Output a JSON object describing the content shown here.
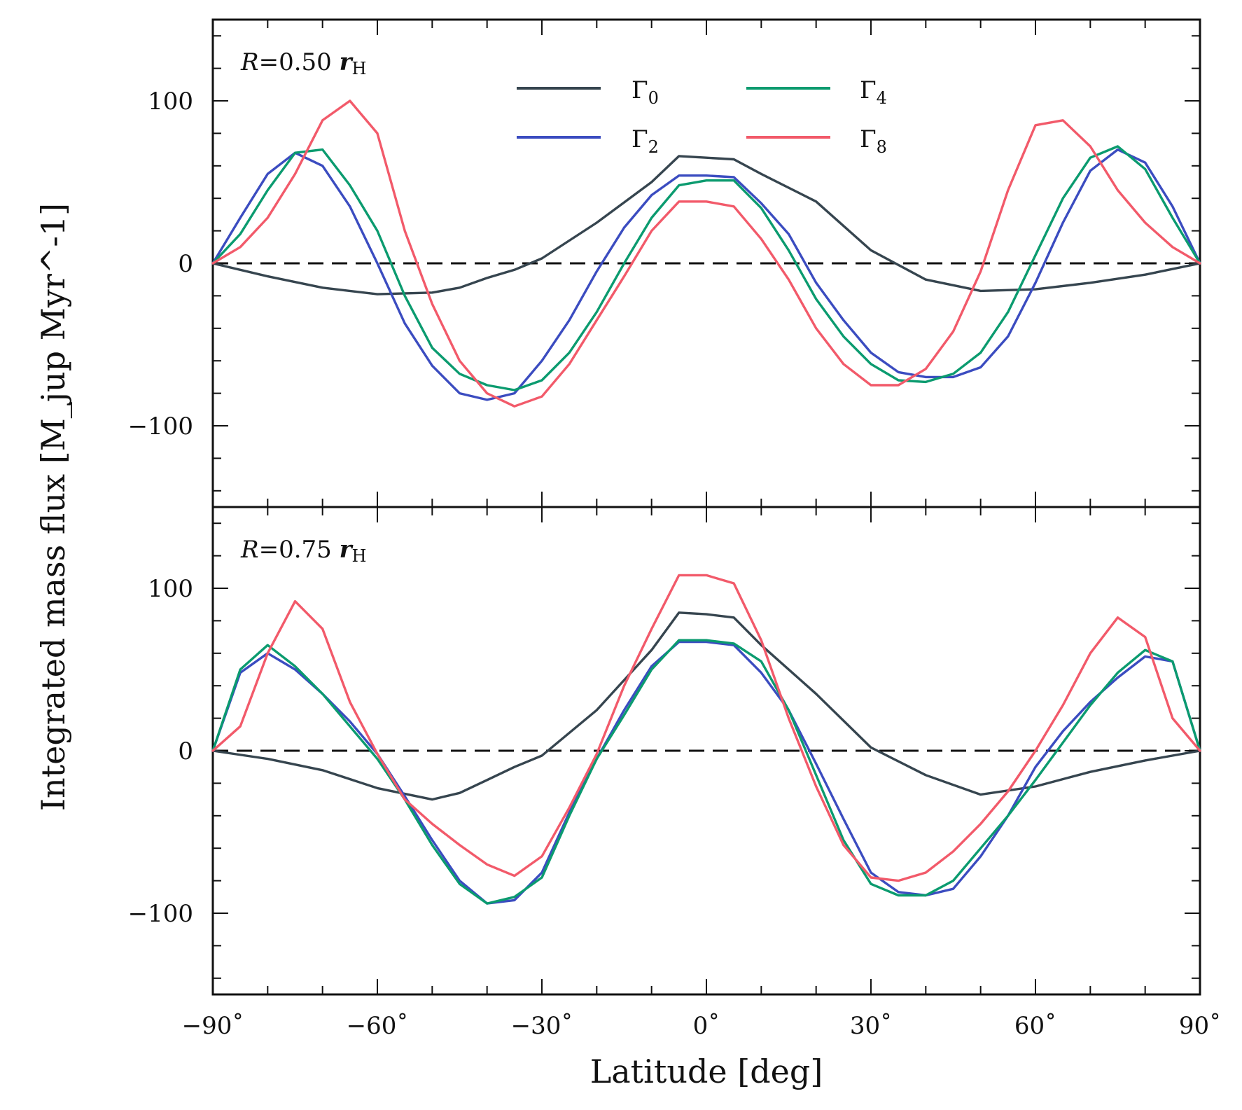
{
  "chart_data": {
    "type": "line",
    "xlabel": "Latitude [deg]",
    "ylabel_main": "Integrated mass flux",
    "ylabel_unit": "[M_jup Myr^-1]",
    "xlim": [
      -90,
      90
    ],
    "ylim": [
      -150,
      150
    ],
    "x_ticks": [
      -90,
      -60,
      -30,
      0,
      30,
      60,
      90
    ],
    "x_tick_labels": [
      "−90˚",
      "−60˚",
      "−30˚",
      "0˚",
      "30˚",
      "60˚",
      "90˚"
    ],
    "y_ticks": [
      -100,
      0,
      100
    ],
    "y_tick_labels": [
      "−100",
      "0",
      "100"
    ],
    "legend": {
      "placement": "top-center",
      "entries": [
        {
          "key": "g0",
          "base": "Γ",
          "sub": "0"
        },
        {
          "key": "g2",
          "base": "Γ",
          "sub": "2"
        },
        {
          "key": "g4",
          "base": "Γ",
          "sub": "4"
        },
        {
          "key": "g8",
          "base": "Γ",
          "sub": "8"
        }
      ]
    },
    "colors": {
      "g0": "#36454f",
      "g2": "#3b4cc0",
      "g4": "#0b9b6f",
      "g8": "#f25a6a"
    },
    "panels": [
      {
        "label": {
          "prefix": "R",
          "value": "=0.50 ",
          "unit": "r",
          "unit_sub": "H"
        },
        "series": [
          {
            "key": "g0",
            "x": [
              -90,
              -80,
              -70,
              -60,
              -50,
              -45,
              -40,
              -35,
              -30,
              -20,
              -10,
              -5,
              0,
              5,
              10,
              20,
              30,
              40,
              50,
              60,
              70,
              80,
              90
            ],
            "y": [
              0,
              -8,
              -15,
              -19,
              -18,
              -15,
              -9,
              -4,
              3,
              25,
              50,
              66,
              65,
              64,
              55,
              38,
              8,
              -10,
              -17,
              -16,
              -12,
              -7,
              0
            ]
          },
          {
            "key": "g2",
            "x": [
              -90,
              -85,
              -80,
              -75,
              -70,
              -65,
              -60,
              -55,
              -50,
              -45,
              -40,
              -35,
              -30,
              -25,
              -20,
              -15,
              -10,
              -5,
              0,
              5,
              10,
              15,
              20,
              25,
              30,
              35,
              40,
              45,
              50,
              55,
              60,
              65,
              70,
              75,
              80,
              85,
              90
            ],
            "y": [
              0,
              28,
              55,
              68,
              60,
              35,
              0,
              -37,
              -63,
              -80,
              -84,
              -80,
              -60,
              -35,
              -5,
              22,
              42,
              54,
              54,
              53,
              37,
              18,
              -12,
              -35,
              -55,
              -67,
              -70,
              -70,
              -64,
              -45,
              -12,
              25,
              57,
              70,
              62,
              35,
              0
            ]
          },
          {
            "key": "g4",
            "x": [
              -90,
              -85,
              -80,
              -75,
              -70,
              -65,
              -60,
              -55,
              -50,
              -45,
              -40,
              -35,
              -30,
              -25,
              -20,
              -15,
              -10,
              -5,
              0,
              5,
              10,
              15,
              20,
              25,
              30,
              35,
              40,
              45,
              50,
              55,
              60,
              65,
              70,
              75,
              80,
              85,
              90
            ],
            "y": [
              0,
              18,
              45,
              68,
              70,
              48,
              20,
              -20,
              -52,
              -68,
              -75,
              -78,
              -72,
              -55,
              -30,
              0,
              28,
              48,
              51,
              51,
              34,
              8,
              -22,
              -45,
              -62,
              -72,
              -73,
              -68,
              -55,
              -30,
              5,
              40,
              65,
              72,
              58,
              28,
              0
            ]
          },
          {
            "key": "g8",
            "x": [
              -90,
              -85,
              -80,
              -75,
              -70,
              -65,
              -60,
              -55,
              -50,
              -45,
              -40,
              -35,
              -30,
              -25,
              -20,
              -15,
              -10,
              -5,
              0,
              5,
              10,
              15,
              20,
              25,
              30,
              35,
              40,
              45,
              50,
              55,
              60,
              65,
              70,
              75,
              80,
              85,
              90
            ],
            "y": [
              0,
              10,
              28,
              55,
              88,
              100,
              80,
              20,
              -25,
              -60,
              -80,
              -88,
              -82,
              -62,
              -35,
              -8,
              20,
              38,
              38,
              35,
              15,
              -10,
              -40,
              -62,
              -75,
              -75,
              -65,
              -42,
              -5,
              45,
              85,
              88,
              72,
              45,
              25,
              10,
              0
            ]
          }
        ]
      },
      {
        "label": {
          "prefix": "R",
          "value": "=0.75 ",
          "unit": "r",
          "unit_sub": "H"
        },
        "series": [
          {
            "key": "g0",
            "x": [
              -90,
              -80,
              -70,
              -60,
              -50,
              -45,
              -40,
              -35,
              -30,
              -20,
              -10,
              -5,
              0,
              5,
              10,
              20,
              30,
              40,
              50,
              60,
              70,
              80,
              90
            ],
            "y": [
              0,
              -5,
              -12,
              -23,
              -30,
              -26,
              -18,
              -10,
              -3,
              25,
              62,
              85,
              84,
              82,
              65,
              35,
              2,
              -15,
              -27,
              -22,
              -13,
              -6,
              0
            ]
          },
          {
            "key": "g2",
            "x": [
              -90,
              -85,
              -80,
              -75,
              -70,
              -65,
              -60,
              -55,
              -50,
              -45,
              -40,
              -35,
              -30,
              -25,
              -20,
              -15,
              -10,
              -5,
              0,
              5,
              10,
              15,
              20,
              25,
              30,
              35,
              40,
              45,
              50,
              55,
              60,
              65,
              70,
              75,
              80,
              85,
              90
            ],
            "y": [
              0,
              48,
              60,
              50,
              35,
              18,
              -2,
              -28,
              -55,
              -80,
              -94,
              -92,
              -75,
              -38,
              -5,
              25,
              52,
              67,
              67,
              65,
              48,
              25,
              -8,
              -42,
              -75,
              -87,
              -89,
              -85,
              -65,
              -40,
              -10,
              12,
              30,
              45,
              58,
              55,
              0
            ]
          },
          {
            "key": "g4",
            "x": [
              -90,
              -85,
              -80,
              -75,
              -70,
              -65,
              -60,
              -55,
              -50,
              -45,
              -40,
              -35,
              -30,
              -25,
              -20,
              -15,
              -10,
              -5,
              0,
              5,
              10,
              15,
              20,
              25,
              30,
              35,
              40,
              45,
              50,
              55,
              60,
              65,
              70,
              75,
              80,
              85,
              90
            ],
            "y": [
              0,
              50,
              65,
              52,
              35,
              15,
              -5,
              -30,
              -58,
              -82,
              -94,
              -90,
              -78,
              -40,
              -5,
              22,
              50,
              68,
              68,
              66,
              55,
              25,
              -15,
              -55,
              -82,
              -89,
              -89,
              -80,
              -60,
              -40,
              -18,
              5,
              28,
              48,
              62,
              55,
              0
            ]
          },
          {
            "key": "g8",
            "x": [
              -90,
              -85,
              -80,
              -75,
              -70,
              -65,
              -60,
              -55,
              -50,
              -45,
              -40,
              -35,
              -30,
              -25,
              -20,
              -15,
              -10,
              -5,
              0,
              5,
              10,
              15,
              20,
              25,
              30,
              35,
              40,
              45,
              50,
              55,
              60,
              65,
              70,
              75,
              80,
              85,
              90
            ],
            "y": [
              0,
              15,
              60,
              92,
              75,
              30,
              -2,
              -30,
              -45,
              -58,
              -70,
              -77,
              -65,
              -35,
              -2,
              40,
              75,
              108,
              108,
              103,
              68,
              20,
              -22,
              -58,
              -78,
              -80,
              -75,
              -62,
              -45,
              -25,
              0,
              28,
              60,
              82,
              70,
              20,
              0
            ]
          }
        ]
      }
    ]
  }
}
